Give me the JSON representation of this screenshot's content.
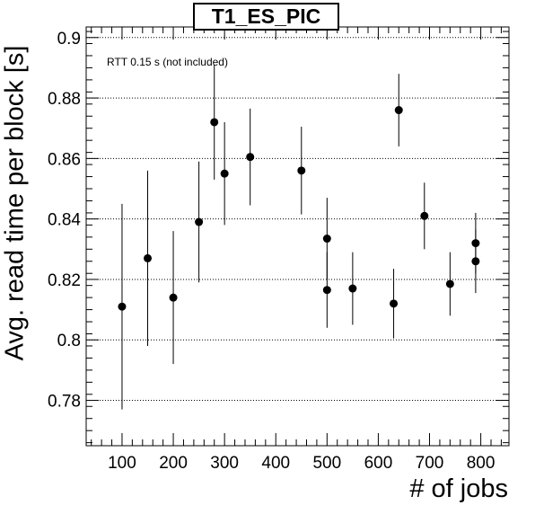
{
  "chart_data": {
    "type": "scatter",
    "title": "T1_ES_PIC",
    "xlabel": "# of jobs",
    "ylabel": "Avg. read time per block [s]",
    "annotation": "RTT 0.15 s (not included)",
    "xlim": [
      30,
      855
    ],
    "ylim": [
      0.765,
      0.9035
    ],
    "x_ticks": [
      100,
      200,
      300,
      400,
      500,
      600,
      700,
      800
    ],
    "y_ticks": [
      0.78,
      0.8,
      0.82,
      0.84,
      0.86,
      0.88,
      0.9
    ],
    "y_tick_labels": [
      "0.78",
      "0.8",
      "0.82",
      "0.84",
      "0.86",
      "0.88",
      "0.9"
    ],
    "grid": "horizontal dotted at major y ticks",
    "marker_color": "#000000",
    "points": [
      {
        "x": 100,
        "y": 0.811,
        "err": 0.034
      },
      {
        "x": 150,
        "y": 0.827,
        "err": 0.029
      },
      {
        "x": 200,
        "y": 0.814,
        "err": 0.022
      },
      {
        "x": 250,
        "y": 0.839,
        "err": 0.02
      },
      {
        "x": 280,
        "y": 0.872,
        "err": 0.019
      },
      {
        "x": 300,
        "y": 0.855,
        "err": 0.017
      },
      {
        "x": 350,
        "y": 0.8605,
        "err": 0.016
      },
      {
        "x": 450,
        "y": 0.856,
        "err": 0.0145
      },
      {
        "x": 500,
        "y": 0.8335,
        "err": 0.0135
      },
      {
        "x": 500,
        "y": 0.8165,
        "err": 0.0125
      },
      {
        "x": 550,
        "y": 0.817,
        "err": 0.012
      },
      {
        "x": 630,
        "y": 0.812,
        "err": 0.0115
      },
      {
        "x": 640,
        "y": 0.876,
        "err": 0.012
      },
      {
        "x": 690,
        "y": 0.841,
        "err": 0.011
      },
      {
        "x": 740,
        "y": 0.8185,
        "err": 0.0105
      },
      {
        "x": 790,
        "y": 0.832,
        "err": 0.01
      },
      {
        "x": 790,
        "y": 0.826,
        "err": 0.0105
      }
    ]
  }
}
